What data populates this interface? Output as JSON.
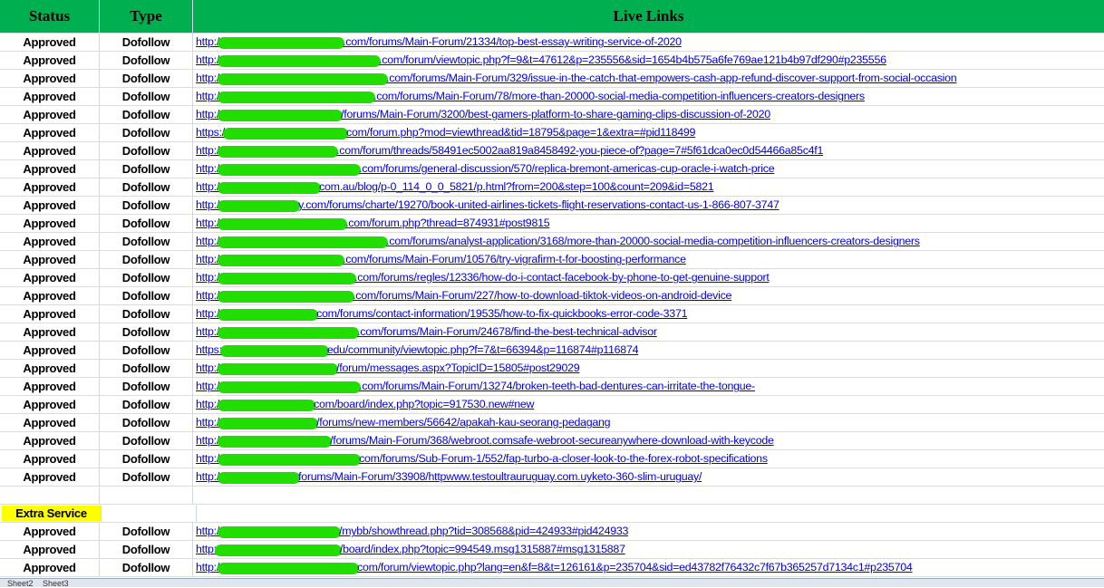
{
  "header": {
    "status": "Status",
    "type": "Type",
    "links": "Live Links",
    "color": "#00b050"
  },
  "rows": [
    {
      "status": "Approved",
      "type": "Dofollow",
      "prefix": "http:/",
      "suffix": ".com/forums/Main-Forum/21334/top-best-essay-writing-service-of-2020"
    },
    {
      "status": "Approved",
      "type": "Dofollow",
      "prefix": "http:/",
      "suffix": ".com/forum/viewtopic.php?f=9&t=47612&p=235556&sid=1654b4b575a6fe769ae121b4b97df290#p235556"
    },
    {
      "status": "Approved",
      "type": "Dofollow",
      "prefix": "http:/",
      "suffix": ".com/forums/Main-Forum/329/issue-in-the-catch-that-empowers-cash-app-refund-discover-support-from-social-occasion"
    },
    {
      "status": "Approved",
      "type": "Dofollow",
      "prefix": "http:/",
      "suffix": ".com/forums/Main-Forum/78/more-than-20000-social-media-competition-influencers-creators-designers"
    },
    {
      "status": "Approved",
      "type": "Dofollow",
      "prefix": "http:/",
      "suffix": "/forums/Main-Forum/3200/best-gamers-platform-to-share-gaming-clips-discussion-of-2020"
    },
    {
      "status": "Approved",
      "type": "Dofollow",
      "prefix": "https:/",
      "suffix": "com/forum.php?mod=viewthread&tid=18795&page=1&extra=#pid118499"
    },
    {
      "status": "Approved",
      "type": "Dofollow",
      "prefix": "http:/",
      "suffix": ".com/forum/threads/58491ec5002aa819a8458492-you-piece-of?page=7#5f61dca0ec0d54466a85c4f1"
    },
    {
      "status": "Approved",
      "type": "Dofollow",
      "prefix": "http:/",
      "suffix": ".com/forums/general-discussion/570/replica-bremont-americas-cup-oracle-i-watch-price"
    },
    {
      "status": "Approved",
      "type": "Dofollow",
      "prefix": "http:/",
      "suffix": "com.au/blog/p-0_114_0_0_5821/p.html?from=200&step=100&count=209&id=5821"
    },
    {
      "status": "Approved",
      "type": "Dofollow",
      "prefix": "http:/",
      "suffix": "y.com/forums/charte/19270/book-united-airlines-tickets-flight-reservations-contact-us-1-866-807-3747"
    },
    {
      "status": "Approved",
      "type": "Dofollow",
      "prefix": "http:/",
      "suffix": ".com/forum.php?thread=874931#post9815"
    },
    {
      "status": "Approved",
      "type": "Dofollow",
      "prefix": "http:/",
      "suffix": ".com/forums/analyst-application/3168/more-than-20000-social-media-competition-influencers-creators-designers"
    },
    {
      "status": "Approved",
      "type": "Dofollow",
      "prefix": "http:/",
      "suffix": ".com/forums/Main-Forum/10576/try-vigrafirm-t-for-boosting-performance"
    },
    {
      "status": "Approved",
      "type": "Dofollow",
      "prefix": "http:/",
      "suffix": ".com/forums/regles/12336/how-do-i-contact-facebook-by-phone-to-get-genuine-support"
    },
    {
      "status": "Approved",
      "type": "Dofollow",
      "prefix": "http:/",
      "suffix": ".com/forums/Main-Forum/227/how-to-download-tiktok-videos-on-android-device"
    },
    {
      "status": "Approved",
      "type": "Dofollow",
      "prefix": "http:/",
      "suffix": "com/forums/contact-information/19535/how-to-fix-quickbooks-error-code-3371"
    },
    {
      "status": "Approved",
      "type": "Dofollow",
      "prefix": "http:/",
      "suffix": ".com/forums/Main-Forum/24678/find-the-best-technical-advisor"
    },
    {
      "status": "Approved",
      "type": "Dofollow",
      "prefix": "https:",
      "suffix": "edu/community/viewtopic.php?f=7&t=66394&p=116874#p116874"
    },
    {
      "status": "Approved",
      "type": "Dofollow",
      "prefix": "http:/",
      "suffix": "/forum/messages.aspx?TopicID=15805#post29029"
    },
    {
      "status": "Approved",
      "type": "Dofollow",
      "prefix": "http:/",
      "suffix": ".com/forums/Main-Forum/13274/broken-teeth-bad-dentures-can-irritate-the-tongue-"
    },
    {
      "status": "Approved",
      "type": "Dofollow",
      "prefix": "http:/",
      "suffix": "com/board/index.php?topic=917530.new#new"
    },
    {
      "status": "Approved",
      "type": "Dofollow",
      "prefix": "http:/",
      "suffix": "/forums/new-members/56642/apakah-kau-seorang-pedagang"
    },
    {
      "status": "Approved",
      "type": "Dofollow",
      "prefix": "http:/",
      "suffix": "/forums/Main-Forum/368/webroot.comsafe-webroot-secureanywhere-download-with-keycode"
    },
    {
      "status": "Approved",
      "type": "Dofollow",
      "prefix": "http:/",
      "suffix": "com/forums/Sub-Forum-1/552/fap-turbo-a-closer-look-to-the-forex-robot-specifications"
    },
    {
      "status": "Approved",
      "type": "Dofollow",
      "prefix": "http:/",
      "suffix": "forums/Main-Forum/33908/httpwww.testoultrauruguay.com.uyketo-360-slim-uruguay/"
    }
  ],
  "extra": {
    "label": "Extra Service",
    "color": "#ffff00"
  },
  "extra_rows": [
    {
      "status": "Approved",
      "type": "Dofollow",
      "prefix": "http:/",
      "suffix": "/mybb/showthread.php?tid=308568&pid=424933#pid424933"
    },
    {
      "status": "Approved",
      "type": "Dofollow",
      "prefix": "http:",
      "suffix": "/board/index.php?topic=994549.msg1315887#msg1315887"
    },
    {
      "status": "Approved",
      "type": "Dofollow",
      "prefix": "http:/",
      "suffix": "com/forum/viewtopic.php?lang=en&f=8&t=126161&p=235704&sid=ed43782f76432c7f67b365257d7134c1#p235704"
    }
  ],
  "sheet_tabs": [
    "Sheet2",
    "Sheet3"
  ]
}
